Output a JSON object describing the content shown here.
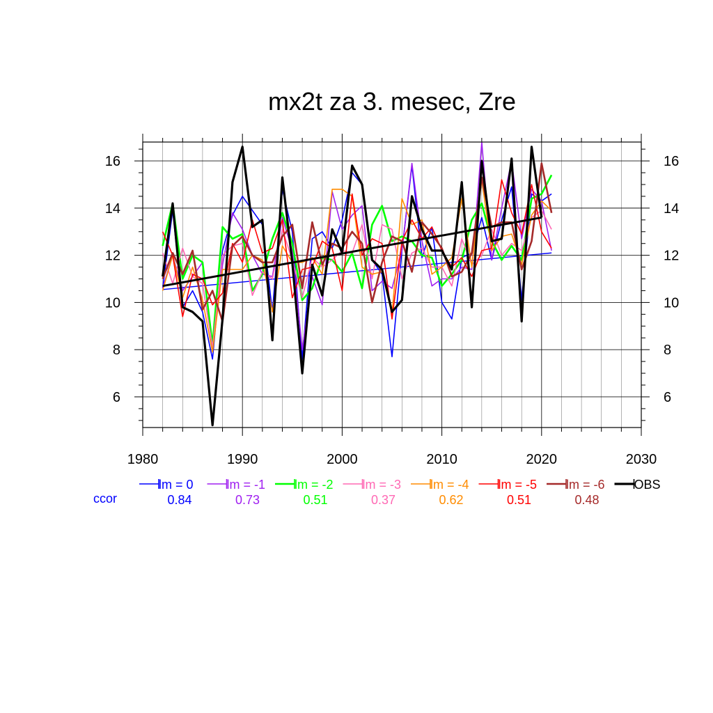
{
  "chart_data": {
    "type": "line",
    "title": "mx2t za 3. mesec, Zre",
    "xlim": [
      1980,
      2030
    ],
    "ylim": [
      4.7,
      16.8
    ],
    "x_ticks": [
      1980,
      1990,
      2000,
      2010,
      2020,
      2030
    ],
    "y_ticks": [
      6,
      8,
      10,
      12,
      14,
      16
    ],
    "grid": true,
    "legend_position": "bottom",
    "ccor_label": "ccor",
    "x": [
      1982,
      1983,
      1984,
      1985,
      1986,
      1987,
      1988,
      1989,
      1990,
      1991,
      1992,
      1993,
      1994,
      1995,
      1996,
      1997,
      1998,
      1999,
      2000,
      2001,
      2002,
      2003,
      2004,
      2005,
      2006,
      2007,
      2008,
      2009,
      2010,
      2011,
      2012,
      2013,
      2014,
      2015,
      2016,
      2017,
      2018,
      2019,
      2020,
      2021
    ],
    "series": [
      {
        "name": "lm = 0",
        "color": "#0000ff",
        "ccor": "0.84",
        "width": 1.6,
        "values": [
          10.6,
          13.9,
          9.8,
          10.5,
          9.6,
          7.6,
          12.2,
          13.7,
          14.5,
          13.9,
          13.3,
          9.6,
          14.8,
          13.0,
          7.6,
          12.7,
          13.0,
          12.3,
          13.5,
          15.5,
          15.0,
          11.8,
          11.2,
          7.7,
          12.2,
          15.8,
          11.9,
          13.2,
          10.0,
          9.3,
          11.9,
          12.1,
          13.6,
          11.8,
          13.5,
          14.9,
          10.1,
          14.6,
          14.3,
          14.6
        ]
      },
      {
        "name": "lm = -1",
        "color": "#a020f0",
        "ccor": "0.73",
        "width": 1.6,
        "values": [
          10.6,
          12.0,
          10.5,
          11.1,
          11.7,
          8.0,
          11.6,
          13.8,
          13.1,
          12.0,
          11.2,
          11.1,
          13.6,
          12.2,
          8.0,
          11.1,
          9.9,
          14.7,
          13.1,
          13.7,
          14.1,
          10.5,
          10.9,
          10.6,
          12.2,
          15.9,
          12.6,
          10.7,
          11.0,
          11.0,
          11.5,
          11.4,
          16.8,
          11.8,
          14.0,
          16.0,
          12.7,
          14.8,
          14.3,
          12.2
        ]
      },
      {
        "name": "lm = -2",
        "color": "#00ff00",
        "ccor": "0.51",
        "width": 2.6,
        "values": [
          12.4,
          14.2,
          11.0,
          12.0,
          11.7,
          8.2,
          13.2,
          12.7,
          12.9,
          10.5,
          11.2,
          12.7,
          13.8,
          12.5,
          10.1,
          10.6,
          11.9,
          11.8,
          11.3,
          12.1,
          10.6,
          13.3,
          14.1,
          12.6,
          12.8,
          12.6,
          12.0,
          11.9,
          10.7,
          11.2,
          11.8,
          13.5,
          14.2,
          12.6,
          11.8,
          12.4,
          11.8,
          14.4,
          14.6,
          15.4
        ]
      },
      {
        "name": "lm = -3",
        "color": "#ff69b4",
        "ccor": "0.37",
        "width": 1.6,
        "values": [
          12.1,
          10.8,
          12.3,
          11.1,
          10.8,
          8.1,
          12.0,
          12.4,
          12.5,
          10.3,
          11.3,
          11.0,
          13.1,
          11.8,
          10.2,
          11.9,
          11.5,
          11.8,
          12.2,
          12.1,
          13.3,
          11.0,
          13.3,
          13.1,
          11.0,
          12.1,
          12.3,
          11.5,
          11.5,
          10.7,
          12.7,
          11.6,
          12.0,
          13.1,
          12.0,
          12.5,
          12.2,
          13.6,
          13.9,
          13.1
        ]
      },
      {
        "name": "lm = -4",
        "color": "#ff8c00",
        "ccor": "0.62",
        "width": 1.6,
        "values": [
          10.5,
          12.0,
          10.2,
          11.5,
          10.1,
          7.9,
          11.4,
          11.4,
          11.4,
          12.0,
          11.8,
          9.6,
          12.4,
          11.7,
          11.7,
          11.9,
          11.2,
          14.8,
          14.8,
          14.5,
          11.5,
          11.2,
          11.3,
          9.5,
          14.4,
          13.3,
          13.5,
          11.2,
          11.5,
          11.9,
          14.4,
          11.5,
          15.2,
          12.2,
          12.8,
          12.9,
          11.6,
          13.7,
          14.3,
          13.9
        ]
      },
      {
        "name": "lm = -5",
        "color": "#ff0000",
        "ccor": "0.51",
        "width": 1.6,
        "values": [
          13.0,
          12.0,
          9.4,
          11.2,
          11.0,
          9.9,
          10.4,
          12.5,
          11.7,
          13.5,
          12.1,
          12.3,
          13.5,
          10.2,
          11.4,
          11.5,
          12.6,
          12.3,
          10.5,
          14.6,
          12.0,
          12.7,
          12.5,
          9.3,
          12.6,
          13.5,
          12.7,
          13.2,
          12.2,
          11.5,
          11.9,
          11.1,
          12.2,
          12.3,
          15.2,
          13.8,
          12.9,
          15.0,
          13.0,
          12.3
        ]
      },
      {
        "name": "lm = -6",
        "color": "#a52a2a",
        "ccor": "0.48",
        "width": 2.6,
        "values": [
          11.0,
          12.1,
          11.2,
          12.2,
          9.7,
          10.5,
          9.2,
          12.4,
          12.8,
          12.0,
          11.7,
          11.7,
          12.8,
          13.3,
          10.6,
          13.4,
          11.6,
          12.5,
          12.3,
          13.0,
          12.5,
          10.0,
          11.7,
          12.8,
          12.6,
          11.3,
          13.4,
          12.9,
          12.3,
          11.1,
          11.3,
          12.1,
          15.3,
          13.2,
          13.4,
          13.4,
          11.4,
          12.6,
          15.9,
          13.8
        ]
      },
      {
        "name": "OBS",
        "color": "#000000",
        "ccor": "",
        "width": 3.2,
        "values": [
          11.1,
          14.2,
          9.8,
          9.6,
          9.2,
          4.8,
          9.3,
          15.1,
          16.6,
          13.2,
          13.5,
          8.4,
          15.3,
          11.7,
          7.0,
          11.6,
          10.3,
          13.1,
          12.1,
          15.8,
          15.0,
          11.8,
          11.4,
          9.6,
          10.1,
          14.5,
          13.1,
          12.2,
          12.2,
          11.4,
          15.1,
          9.8,
          16.0,
          12.6,
          12.7,
          16.1,
          9.2,
          16.6,
          13.6,
          null
        ]
      }
    ],
    "trend_lines": [
      {
        "color": "#0000ff",
        "width": 1.4,
        "x": [
          1982,
          2021
        ],
        "y": [
          10.55,
          12.1
        ]
      },
      {
        "color": "#000000",
        "width": 3.0,
        "x": [
          1982,
          2020
        ],
        "y": [
          10.7,
          13.6
        ]
      }
    ]
  }
}
